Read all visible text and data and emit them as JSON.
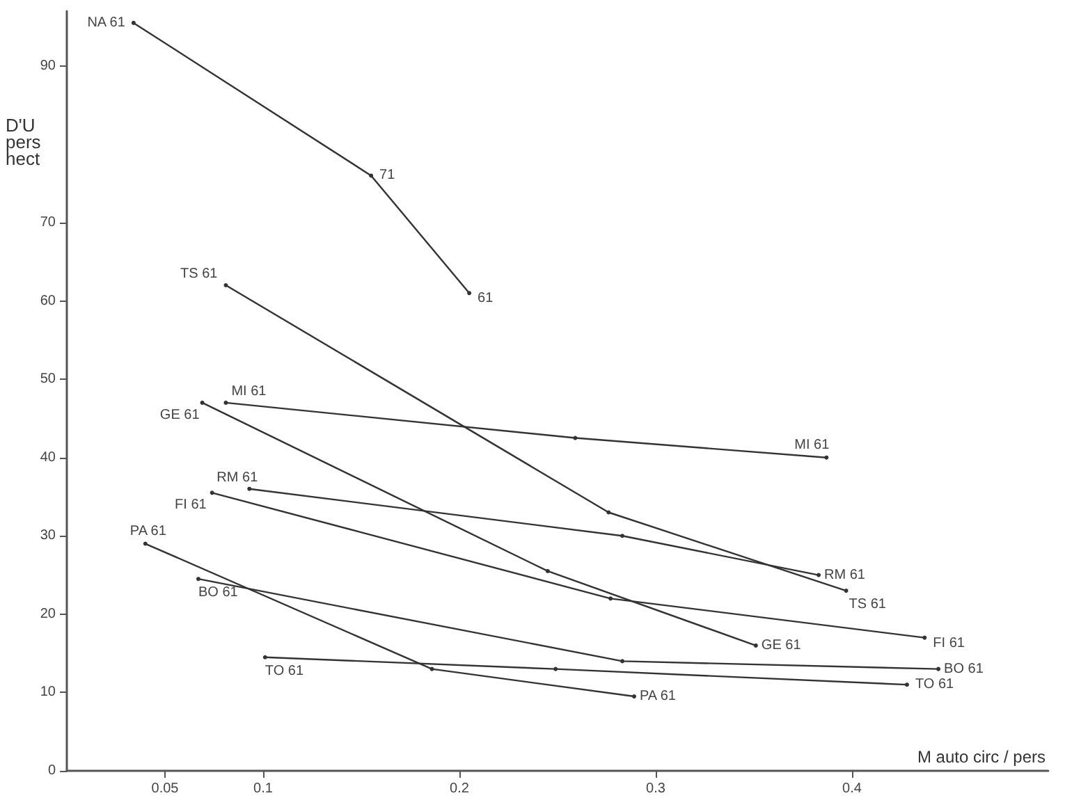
{
  "chart_data": {
    "type": "line",
    "xlabel": "M auto circ / pers",
    "ylabel": "D'U\npers\nhect",
    "xlim": [
      0,
      0.5
    ],
    "xticks": [
      0.05,
      0.1,
      0.2,
      0.3,
      0.4
    ],
    "ylim": [
      0,
      97
    ],
    "yticks": [
      0,
      10,
      20,
      30,
      40,
      50,
      60,
      70,
      90
    ],
    "grid": false,
    "marker": "circle",
    "line_style": "solid",
    "series": [
      {
        "color": "#333333",
        "x": [
          0.034,
          0.155,
          0.205
        ],
        "values": [
          95.5,
          76,
          61
        ]
      },
      {
        "color": "#333333",
        "x": [
          0.081,
          0.276,
          0.397
        ],
        "values": [
          62,
          33,
          23
        ]
      },
      {
        "color": "#333333",
        "x": [
          0.081,
          0.259,
          0.387
        ],
        "values": [
          47,
          42.5,
          40
        ]
      },
      {
        "color": "#333333",
        "x": [
          0.069,
          0.245,
          0.351
        ],
        "values": [
          47,
          25.5,
          16
        ]
      },
      {
        "color": "#333333",
        "x": [
          0.093,
          0.283,
          0.383
        ],
        "values": [
          36,
          30,
          25
        ]
      },
      {
        "color": "#333333",
        "x": [
          0.074,
          0.277,
          0.437
        ],
        "values": [
          35.5,
          22,
          17
        ]
      },
      {
        "color": "#333333",
        "x": [
          0.04,
          0.186,
          0.289
        ],
        "values": [
          29,
          13,
          9.5
        ]
      },
      {
        "color": "#333333",
        "x": [
          0.067,
          0.283,
          0.444
        ],
        "values": [
          24.5,
          14,
          13
        ]
      },
      {
        "color": "#333333",
        "x": [
          0.101,
          0.249,
          0.428
        ],
        "values": [
          14.5,
          13,
          11
        ]
      }
    ],
    "annotations": [
      {
        "text": "NA 61",
        "x": 0.034,
        "y": 95.5
      },
      {
        "text": "71",
        "x": 0.155,
        "y": 76
      },
      {
        "text": "61",
        "x": 0.205,
        "y": 61
      },
      {
        "text": "TS 61",
        "x": 0.081,
        "y": 62
      },
      {
        "text": "TS 61",
        "x": 0.397,
        "y": 23
      },
      {
        "text": "MI 61",
        "x": 0.081,
        "y": 47
      },
      {
        "text": "MI 61",
        "x": 0.387,
        "y": 40
      },
      {
        "text": "GE 61",
        "x": 0.069,
        "y": 47
      },
      {
        "text": "GE 61",
        "x": 0.351,
        "y": 16
      },
      {
        "text": "RM 61",
        "x": 0.093,
        "y": 36
      },
      {
        "text": "RM 61",
        "x": 0.383,
        "y": 25
      },
      {
        "text": "FI 61",
        "x": 0.074,
        "y": 35.5
      },
      {
        "text": "FI 61",
        "x": 0.437,
        "y": 17
      },
      {
        "text": "PA 61",
        "x": 0.04,
        "y": 29
      },
      {
        "text": "PA 61",
        "x": 0.289,
        "y": 9.5
      },
      {
        "text": "BO 61",
        "x": 0.067,
        "y": 24.5
      },
      {
        "text": "BO 61",
        "x": 0.444,
        "y": 13
      },
      {
        "text": "TO 61",
        "x": 0.101,
        "y": 14.5
      },
      {
        "text": "TO 61",
        "x": 0.428,
        "y": 11
      }
    ]
  }
}
